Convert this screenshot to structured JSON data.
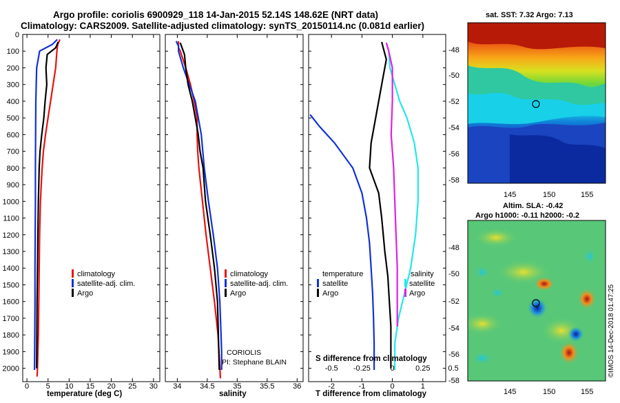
{
  "header": {
    "title_line1": "Argo profile: coriolis 6900929_118 14-Jan-2015 52.14S 148.62E (NRT data)",
    "title_line2": "Climatology: CARS2009. Satellite-adjusted climatology: synTS_20150114.nc (0.081d earlier)"
  },
  "colors": {
    "climatology": "#e81010",
    "satellite": "#1030d8",
    "argo": "#000000",
    "sal_satellite": "#20e8e8",
    "sal_argo": "#e020e0"
  },
  "chart_data": [
    {
      "type": "line",
      "id": "temperature",
      "xlabel": "temperature (deg C)",
      "xlim": [
        -1,
        31.5
      ],
      "ylim": [
        2080,
        0
      ],
      "xticks": [
        0,
        5,
        10,
        15,
        20,
        25,
        30
      ],
      "yticks": [
        0,
        100,
        200,
        300,
        400,
        500,
        600,
        700,
        800,
        900,
        1000,
        1100,
        1200,
        1300,
        1400,
        1500,
        1600,
        1700,
        1800,
        1900,
        2000
      ],
      "legend": [
        "climatology",
        "satellite-adj. clim.",
        "Argo"
      ],
      "series": [
        {
          "name": "climatology",
          "x": [
            7.8,
            7.3,
            7.1,
            6.8,
            6.2,
            5.6,
            5.0,
            4.4,
            3.9,
            3.6,
            3.4,
            3.2,
            3.0,
            2.9,
            2.8,
            2.7,
            2.6,
            2.5,
            2.4
          ],
          "y": [
            30,
            60,
            100,
            200,
            300,
            400,
            500,
            600,
            700,
            800,
            900,
            1000,
            1200,
            1400,
            1600,
            1800,
            1900,
            2000,
            2050
          ]
        },
        {
          "name": "satellite-adj. clim.",
          "x": [
            7.2,
            6.0,
            3.0,
            2.3,
            2.2,
            2.1,
            2.05,
            2.0,
            2.0,
            1.95,
            1.9,
            1.9,
            1.85,
            1.8
          ],
          "y": [
            30,
            60,
            100,
            200,
            300,
            400,
            600,
            800,
            1000,
            1200,
            1400,
            1600,
            1800,
            2010
          ]
        },
        {
          "name": "Argo",
          "x": [
            7.4,
            6.8,
            4.8,
            4.5,
            4.7,
            4.3,
            4.0,
            3.5,
            3.1,
            2.9,
            2.7,
            2.6,
            2.5,
            2.4,
            2.35,
            2.3
          ],
          "y": [
            45,
            80,
            120,
            200,
            300,
            400,
            500,
            600,
            700,
            800,
            1000,
            1200,
            1400,
            1600,
            1800,
            2000
          ]
        }
      ]
    },
    {
      "type": "line",
      "id": "salinity",
      "xlabel": "salinity",
      "xlim": [
        33.8,
        36.1
      ],
      "ylim": [
        2080,
        0
      ],
      "xticks": [
        34,
        34.5,
        35,
        35.5,
        36
      ],
      "legend": [
        "climatology",
        "satellite-adj. clim.",
        "Argo"
      ],
      "series": [
        {
          "name": "climatology",
          "x": [
            34.02,
            34.02,
            34.05,
            34.14,
            34.22,
            34.28,
            34.33,
            34.33,
            34.34,
            34.36,
            34.39,
            34.42,
            34.48,
            34.55,
            34.62,
            34.68,
            34.72
          ],
          "y": [
            40,
            80,
            100,
            200,
            300,
            400,
            500,
            600,
            700,
            800,
            900,
            1000,
            1200,
            1400,
            1600,
            1800,
            2060
          ]
        },
        {
          "name": "satellite-adj. clim.",
          "x": [
            33.98,
            34.02,
            34.02,
            34.1,
            34.2,
            34.3,
            34.4,
            34.45,
            34.52,
            34.6,
            34.67,
            34.71,
            34.73,
            34.74,
            34.74
          ],
          "y": [
            40,
            70,
            100,
            200,
            300,
            400,
            600,
            800,
            1000,
            1200,
            1400,
            1600,
            1800,
            1900,
            2010
          ]
        },
        {
          "name": "Argo",
          "x": [
            34.05,
            34.08,
            34.12,
            34.14,
            34.18,
            34.25,
            34.3,
            34.35,
            34.38,
            34.43,
            34.47,
            34.55,
            34.62,
            34.67,
            34.7
          ],
          "y": [
            50,
            80,
            120,
            200,
            300,
            400,
            500,
            600,
            700,
            800,
            1000,
            1200,
            1400,
            1600,
            2010
          ]
        }
      ],
      "annotations": [
        "CORIOLIS",
        "PI: Stephane BLAIN"
      ]
    },
    {
      "type": "line",
      "id": "difference",
      "xlabel": "T difference from climatology",
      "xlabel_top": "S difference from climatology",
      "xlim": [
        -2.75,
        1.75
      ],
      "ylim": [
        2080,
        0
      ],
      "xticks": [
        -2,
        -1,
        0,
        1
      ],
      "sticks": [
        "-0.5",
        "-0.25",
        "0",
        "0.25",
        "0.5"
      ],
      "legend_left": {
        "title": "temperature",
        "items": [
          "satellite",
          "Argo"
        ]
      },
      "legend_right": {
        "title": "salinity",
        "items": [
          "satellite",
          "Argo"
        ]
      },
      "series": [
        {
          "name": "temperature satellite",
          "x": [
            -2.7,
            -2.4,
            -1.9,
            -1.3,
            -1.0,
            -0.85,
            -0.75,
            -0.7,
            -0.65,
            -0.62,
            -0.6,
            -0.6,
            -0.6
          ],
          "y": [
            480,
            550,
            650,
            800,
            950,
            1100,
            1250,
            1400,
            1550,
            1700,
            1850,
            1950,
            2010
          ]
        },
        {
          "name": "temperature Argo",
          "x": [
            -0.35,
            -0.3,
            -0.2,
            -0.3,
            -0.4,
            -0.5,
            -0.7,
            -0.75,
            -0.45,
            -0.35,
            -0.25,
            -0.15,
            -0.1,
            -0.05,
            -0.05,
            -0.05
          ],
          "y": [
            45,
            80,
            150,
            250,
            350,
            450,
            650,
            800,
            950,
            1100,
            1300,
            1450,
            1600,
            1750,
            1900,
            2000
          ]
        },
        {
          "name": "salinity satellite",
          "sx": [
            -0.05,
            -0.03,
            -0.02,
            0.02,
            0.06,
            0.12,
            0.18,
            0.21,
            0.21,
            0.19,
            0.15,
            0.1,
            0.05,
            0.02,
            0.02
          ],
          "y": [
            50,
            100,
            200,
            300,
            400,
            500,
            650,
            800,
            1000,
            1200,
            1400,
            1550,
            1700,
            1850,
            2010
          ]
        },
        {
          "name": "salinity Argo",
          "sx": [
            -0.05,
            -0.03,
            0.0,
            0.0,
            0.0,
            -0.005,
            -0.01,
            0.0,
            0.01,
            0.02,
            0.03,
            0.04,
            0.04,
            0.04,
            0.04
          ],
          "y": [
            50,
            100,
            200,
            300,
            400,
            500,
            600,
            700,
            800,
            1000,
            1200,
            1400,
            1550,
            1700,
            1750
          ]
        }
      ]
    }
  ],
  "sst_map": {
    "title": "sat. SST: 7.32 Argo: 7.13",
    "xticks": [
      "145",
      "150",
      "155"
    ],
    "yticks": [
      "-48",
      "-50",
      "-52",
      "-54",
      "-56",
      "-58"
    ]
  },
  "sla_map": {
    "title_line1": "Altim. SLA: -0.42",
    "title_line2": "Argo h1000: -0.11 h2000: -0.2",
    "xticks": [
      "145",
      "150",
      "155"
    ],
    "yticks": [
      "-48",
      "-50",
      "-52",
      "-54",
      "-56",
      "-58"
    ]
  },
  "side_text": "©IMOS 14-Dec-2018 01:47:25"
}
